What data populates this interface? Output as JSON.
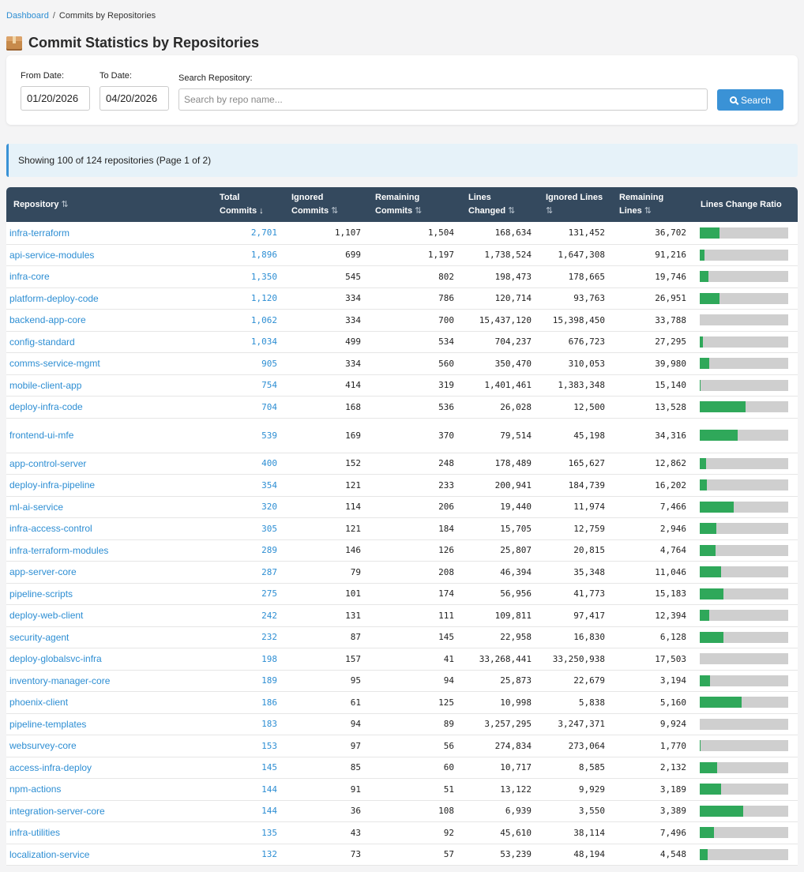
{
  "breadcrumb": {
    "home": "Dashboard",
    "separator": "/",
    "current": "Commits by Repositories"
  },
  "title": "Commit Statistics by Repositories",
  "filters": {
    "from_label": "From Date:",
    "from_value": "01/20/2026",
    "to_label": "To Date:",
    "to_value": "04/20/2026",
    "search_label": "Search Repository:",
    "search_placeholder": "Search by repo name...",
    "search_button": "Search"
  },
  "info": "Showing 100 of 124 repositories (Page 1 of 2)",
  "table": {
    "headers": [
      {
        "l1": "Repository",
        "l2": "",
        "sort": "⇅",
        "active": false
      },
      {
        "l1": "Total",
        "l2": "Commits",
        "sort": "↓",
        "active": true
      },
      {
        "l1": "Ignored",
        "l2": "Commits",
        "sort": "⇅",
        "active": false
      },
      {
        "l1": "Remaining",
        "l2": "Commits",
        "sort": "⇅",
        "active": false
      },
      {
        "l1": "Lines",
        "l2": "Changed",
        "sort": "⇅",
        "active": false
      },
      {
        "l1": "Ignored Lines",
        "l2": "",
        "sort": "⇅",
        "active": false
      },
      {
        "l1": "Remaining",
        "l2": "Lines",
        "sort": "⇅",
        "active": false
      },
      {
        "l1": "Lines Change Ratio",
        "l2": "",
        "sort": "",
        "active": false
      }
    ],
    "rows": [
      {
        "repo": "infra-terraform",
        "total": "2,701",
        "ignored": "1,107",
        "remaining": "1,504",
        "lines": "168,634",
        "ignored_lines": "131,452",
        "remaining_lines": "36,702",
        "ratio": 0.22
      },
      {
        "repo": "api-service-modules",
        "total": "1,896",
        "ignored": "699",
        "remaining": "1,197",
        "lines": "1,738,524",
        "ignored_lines": "1,647,308",
        "remaining_lines": "91,216",
        "ratio": 0.05
      },
      {
        "repo": "infra-core",
        "total": "1,350",
        "ignored": "545",
        "remaining": "802",
        "lines": "198,473",
        "ignored_lines": "178,665",
        "remaining_lines": "19,746",
        "ratio": 0.1
      },
      {
        "repo": "platform-deploy-code",
        "total": "1,120",
        "ignored": "334",
        "remaining": "786",
        "lines": "120,714",
        "ignored_lines": "93,763",
        "remaining_lines": "26,951",
        "ratio": 0.22
      },
      {
        "repo": "backend-app-core",
        "total": "1,062",
        "ignored": "334",
        "remaining": "700",
        "lines": "15,437,120",
        "ignored_lines": "15,398,450",
        "remaining_lines": "33,788",
        "ratio": 0.0
      },
      {
        "repo": "config-standard",
        "total": "1,034",
        "ignored": "499",
        "remaining": "534",
        "lines": "704,237",
        "ignored_lines": "676,723",
        "remaining_lines": "27,295",
        "ratio": 0.04
      },
      {
        "repo": "comms-service-mgmt",
        "total": "905",
        "ignored": "334",
        "remaining": "560",
        "lines": "350,470",
        "ignored_lines": "310,053",
        "remaining_lines": "39,980",
        "ratio": 0.11
      },
      {
        "repo": "mobile-client-app",
        "total": "754",
        "ignored": "414",
        "remaining": "319",
        "lines": "1,401,461",
        "ignored_lines": "1,383,348",
        "remaining_lines": "15,140",
        "ratio": 0.01
      },
      {
        "repo": "deploy-infra-code",
        "total": "704",
        "ignored": "168",
        "remaining": "536",
        "lines": "26,028",
        "ignored_lines": "12,500",
        "remaining_lines": "13,528",
        "ratio": 0.52
      },
      {
        "repo": "frontend-ui-mfe",
        "total": "539",
        "ignored": "169",
        "remaining": "370",
        "lines": "79,514",
        "ignored_lines": "45,198",
        "remaining_lines": "34,316",
        "ratio": 0.43
      },
      {
        "repo": "app-control-server",
        "total": "400",
        "ignored": "152",
        "remaining": "248",
        "lines": "178,489",
        "ignored_lines": "165,627",
        "remaining_lines": "12,862",
        "ratio": 0.07
      },
      {
        "repo": "deploy-infra-pipeline",
        "total": "354",
        "ignored": "121",
        "remaining": "233",
        "lines": "200,941",
        "ignored_lines": "184,739",
        "remaining_lines": "16,202",
        "ratio": 0.08
      },
      {
        "repo": "ml-ai-service",
        "total": "320",
        "ignored": "114",
        "remaining": "206",
        "lines": "19,440",
        "ignored_lines": "11,974",
        "remaining_lines": "7,466",
        "ratio": 0.38
      },
      {
        "repo": "infra-access-control",
        "total": "305",
        "ignored": "121",
        "remaining": "184",
        "lines": "15,705",
        "ignored_lines": "12,759",
        "remaining_lines": "2,946",
        "ratio": 0.19
      },
      {
        "repo": "infra-terraform-modules",
        "total": "289",
        "ignored": "146",
        "remaining": "126",
        "lines": "25,807",
        "ignored_lines": "20,815",
        "remaining_lines": "4,764",
        "ratio": 0.18
      },
      {
        "repo": "app-server-core",
        "total": "287",
        "ignored": "79",
        "remaining": "208",
        "lines": "46,394",
        "ignored_lines": "35,348",
        "remaining_lines": "11,046",
        "ratio": 0.24
      },
      {
        "repo": "pipeline-scripts",
        "total": "275",
        "ignored": "101",
        "remaining": "174",
        "lines": "56,956",
        "ignored_lines": "41,773",
        "remaining_lines": "15,183",
        "ratio": 0.27
      },
      {
        "repo": "deploy-web-client",
        "total": "242",
        "ignored": "131",
        "remaining": "111",
        "lines": "109,811",
        "ignored_lines": "97,417",
        "remaining_lines": "12,394",
        "ratio": 0.11
      },
      {
        "repo": "security-agent",
        "total": "232",
        "ignored": "87",
        "remaining": "145",
        "lines": "22,958",
        "ignored_lines": "16,830",
        "remaining_lines": "6,128",
        "ratio": 0.27
      },
      {
        "repo": "deploy-globalsvc-infra",
        "total": "198",
        "ignored": "157",
        "remaining": "41",
        "lines": "33,268,441",
        "ignored_lines": "33,250,938",
        "remaining_lines": "17,503",
        "ratio": 0.0
      },
      {
        "repo": "inventory-manager-core",
        "total": "189",
        "ignored": "95",
        "remaining": "94",
        "lines": "25,873",
        "ignored_lines": "22,679",
        "remaining_lines": "3,194",
        "ratio": 0.12
      },
      {
        "repo": "phoenix-client",
        "total": "186",
        "ignored": "61",
        "remaining": "125",
        "lines": "10,998",
        "ignored_lines": "5,838",
        "remaining_lines": "5,160",
        "ratio": 0.47
      },
      {
        "repo": "pipeline-templates",
        "total": "183",
        "ignored": "94",
        "remaining": "89",
        "lines": "3,257,295",
        "ignored_lines": "3,247,371",
        "remaining_lines": "9,924",
        "ratio": 0.0
      },
      {
        "repo": "websurvey-core",
        "total": "153",
        "ignored": "97",
        "remaining": "56",
        "lines": "274,834",
        "ignored_lines": "273,064",
        "remaining_lines": "1,770",
        "ratio": 0.01
      },
      {
        "repo": "access-infra-deploy",
        "total": "145",
        "ignored": "85",
        "remaining": "60",
        "lines": "10,717",
        "ignored_lines": "8,585",
        "remaining_lines": "2,132",
        "ratio": 0.2
      },
      {
        "repo": "npm-actions",
        "total": "144",
        "ignored": "91",
        "remaining": "51",
        "lines": "13,122",
        "ignored_lines": "9,929",
        "remaining_lines": "3,189",
        "ratio": 0.24
      },
      {
        "repo": "integration-server-core",
        "total": "144",
        "ignored": "36",
        "remaining": "108",
        "lines": "6,939",
        "ignored_lines": "3,550",
        "remaining_lines": "3,389",
        "ratio": 0.49
      },
      {
        "repo": "infra-utilities",
        "total": "135",
        "ignored": "43",
        "remaining": "92",
        "lines": "45,610",
        "ignored_lines": "38,114",
        "remaining_lines": "7,496",
        "ratio": 0.16
      },
      {
        "repo": "localization-service",
        "total": "132",
        "ignored": "73",
        "remaining": "57",
        "lines": "53,239",
        "ignored_lines": "48,194",
        "remaining_lines": "4,548",
        "ratio": 0.09
      }
    ]
  }
}
